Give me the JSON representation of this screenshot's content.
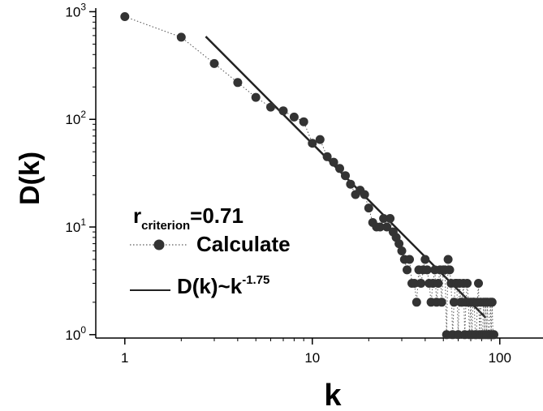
{
  "chart_data": {
    "type": "scatter",
    "title": "",
    "xlabel": "k",
    "ylabel": "D(k)",
    "x_scale": "log",
    "y_scale": "log",
    "xlim": [
      0.7,
      170
    ],
    "ylim": [
      0.93,
      1080
    ],
    "grid": false,
    "x_ticks": [
      {
        "value": 1,
        "label": "1"
      },
      {
        "value": 10,
        "label": "10"
      },
      {
        "value": 100,
        "label": "100"
      }
    ],
    "y_ticks": [
      {
        "value": 1,
        "base": "10",
        "exp": "0"
      },
      {
        "value": 10,
        "base": "10",
        "exp": "1"
      },
      {
        "value": 100,
        "base": "10",
        "exp": "2"
      },
      {
        "value": 1000,
        "base": "10",
        "exp": "3"
      }
    ],
    "annotation": {
      "r_symbol": "r",
      "r_subscript": "criterion",
      "r_value": "=0.71"
    },
    "series": [
      {
        "name": "Calculate",
        "style": "dotted line with filled circles",
        "color": "#333333",
        "x": [
          1,
          2,
          3,
          4,
          5,
          6,
          7,
          8,
          9,
          10,
          11,
          12,
          13,
          14,
          15,
          16,
          17,
          18,
          19,
          20,
          21,
          22,
          23,
          24,
          25,
          26,
          27,
          28,
          29,
          30,
          31,
          32,
          33,
          34,
          35,
          36,
          37,
          38,
          39,
          40,
          41,
          42,
          43,
          44,
          45,
          46,
          47,
          48,
          49,
          50,
          51,
          52,
          53,
          54,
          55,
          56,
          57,
          58,
          59,
          60,
          61,
          62,
          63,
          64,
          65,
          66,
          67,
          68,
          69,
          70,
          71,
          72,
          73,
          74,
          75,
          76,
          77,
          78,
          79,
          80,
          81,
          82,
          83,
          84,
          85,
          86,
          87,
          88,
          89,
          90,
          91,
          92,
          93
        ],
        "y": [
          900,
          580,
          330,
          220,
          160,
          130,
          120,
          105,
          95,
          60,
          65,
          45,
          40,
          35,
          30,
          25,
          20,
          22,
          20,
          15,
          11,
          10,
          10,
          12,
          10,
          12,
          9,
          8,
          7,
          6,
          5,
          4,
          5,
          3,
          3,
          2,
          4,
          3,
          4,
          5,
          4,
          3,
          2,
          3,
          4,
          2,
          3,
          4,
          2,
          4,
          4,
          1,
          5,
          4,
          3,
          1,
          2,
          3,
          3,
          1,
          3,
          2,
          2,
          3,
          1,
          2,
          3,
          2,
          1,
          2,
          1,
          2,
          2,
          1,
          1,
          2,
          3,
          1,
          2,
          1,
          1,
          2,
          1,
          2,
          1,
          2,
          1,
          1,
          2,
          1,
          2,
          1,
          1
        ]
      },
      {
        "name": "D(k)~k",
        "name_exponent": "-1.75",
        "type": "line",
        "exponent": -1.75,
        "x": [
          2.7,
          84
        ],
        "y": [
          588,
          1.44
        ],
        "color": "#222222"
      }
    ]
  }
}
